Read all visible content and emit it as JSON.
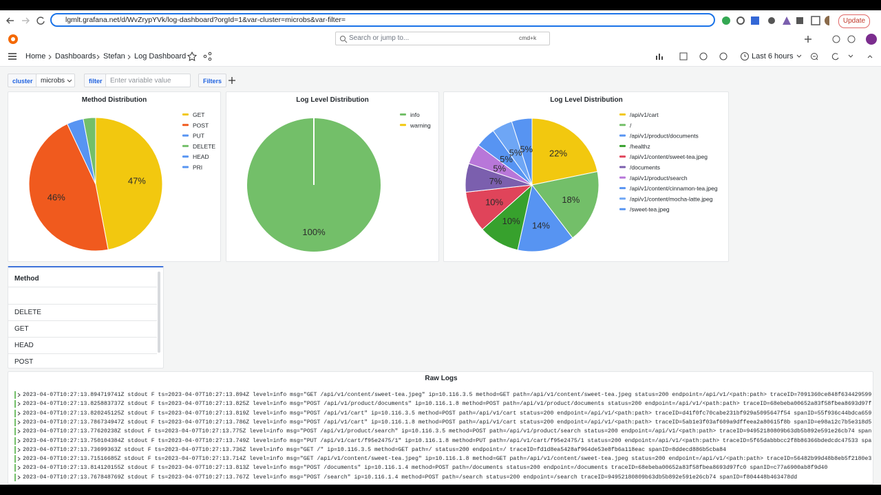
{
  "browser": {
    "url": "lgmlt.grafana.net/d/WvZrypYVk/log-dashboard?orgId=1&var-cluster=microbs&var-filter=",
    "update_button": "Update"
  },
  "topbar": {
    "search_placeholder": "Search or jump to...",
    "shortcut": "cmd+k",
    "breadcrumbs": [
      "Home",
      "Dashboards",
      "Stefan",
      "Log Dashboard"
    ],
    "time_range": "Last 6 hours"
  },
  "variables": {
    "cluster_label": "cluster",
    "cluster_value": "microbs",
    "filter_label": "filter",
    "filter_placeholder": "Enter variable value",
    "filters_button": "Filters"
  },
  "chart_data": [
    {
      "type": "pie",
      "title": "Method Distribution",
      "categories": [
        "GET",
        "POST",
        "PUT",
        "DELETE",
        "HEAD",
        "PRI"
      ],
      "values": [
        47,
        46,
        4,
        3,
        0,
        0
      ],
      "value_labels": [
        "47%",
        "46%",
        null,
        null,
        null,
        null
      ],
      "colors": [
        "#f2c80f",
        "#f05a1e",
        "#5794f2",
        "#73bf69",
        "#5794f2",
        "#5794f2"
      ]
    },
    {
      "type": "pie",
      "title": "Log Level Distribution",
      "categories": [
        "info",
        "warning"
      ],
      "values": [
        100,
        0
      ],
      "value_labels": [
        "100%",
        null
      ],
      "colors": [
        "#73bf69",
        "#f2c80f"
      ]
    },
    {
      "type": "pie",
      "title": "Log Level Distribution",
      "categories": [
        "/api/v1/cart",
        "/",
        "/api/v1/product/documents",
        "/healthz",
        "/api/v1/content/sweet-tea.jpeg",
        "/documents",
        "/api/v1/product/search",
        "/api/v1/content/cinnamon-tea.jpeg",
        "/api/v1/content/mocha-latte.jpeg",
        "/sweet-tea.jpeg"
      ],
      "values": [
        22,
        18,
        14,
        10,
        10,
        7,
        5,
        5,
        5,
        5
      ],
      "value_labels": [
        "22%",
        "18%",
        "14%",
        "10%",
        "10%",
        "7%",
        "5%",
        "5%",
        "5%",
        "5%"
      ],
      "colors": [
        "#f2c80f",
        "#73bf69",
        "#5794f2",
        "#37a12d",
        "#e0445a",
        "#7b5fae",
        "#b877d9",
        "#5794f2",
        "#6ea6f5",
        "#5794f2"
      ]
    }
  ],
  "table": {
    "header": "Method",
    "rows": [
      "DELETE",
      "GET",
      "HEAD",
      "POST"
    ]
  },
  "logs": {
    "title": "Raw Logs",
    "lines": [
      "2023-04-07T10:27:13.894719741Z stdout F ts=2023-04-07T10:27:13.894Z level=info msg=\"GET /api/v1/content/sweet-tea.jpeg\" ip=10.116.3.5 method=GET path=/api/v1/content/sweet-tea.jpeg status=200 endpoint=/api/v1/<path:path> traceID=7091360ce848f634429599",
      "2023-04-07T10:27:13.825883737Z stdout F ts=2023-04-07T10:27:13.825Z level=info msg=\"POST /api/v1/product/documents\" ip=10.116.1.8 method=POST path=/api/v1/product/documents status=200 endpoint=/api/v1/<path:path> traceID=68ebeba00652a83f58fbea8693d97f",
      "2023-04-07T10:27:13.820245125Z stdout F ts=2023-04-07T10:27:13.819Z level=info msg=\"POST /api/v1/cart\" ip=10.116.3.5 method=POST path=/api/v1/cart status=200 endpoint=/api/v1/<path:path> traceID=d41f0fc70cabe231bf929a5095647f54 spanID=55f936c44bdca659",
      "2023-04-07T10:27:13.786734947Z stdout F ts=2023-04-07T10:27:13.786Z level=info msg=\"POST /api/v1/cart\" ip=10.116.1.8 method=POST path=/api/v1/cart status=200 endpoint=/api/v1/<path:path> traceID=5ab1e3f03af609a9dffeea2a80615f8b spanID=e98a12c7b5e318d5",
      "2023-04-07T10:27:13.77620238Z stdout F ts=2023-04-07T10:27:13.775Z level=info msg=\"POST /api/v1/product/search\" ip=10.116.3.5 method=POST path=/api/v1/product/search status=200 endpoint=/api/v1/<path:path> traceID=94952180809b63db5b892e591e26cb74 span",
      "2023-04-07T10:27:13.750104384Z stdout F ts=2023-04-07T10:27:13.749Z level=info msg=\"PUT /api/v1/cart/f95e2475/1\" ip=10.116.1.8 method=PUT path=/api/v1/cart/f95e2475/1 status=200 endpoint=/api/v1/<path:path> traceID=5f65dabbbcc2f8b86366bdedcdc47533 spa",
      "2023-04-07T10:27:13.73699363Z stdout F ts=2023-04-07T10:27:13.736Z level=info msg=\"GET /\" ip=10.116.3.5 method=GET path=/ status=200 endpoint=/ traceID=fd1d8ea5428af964de53e8fb6a118eac spanID=8ddecd886b5cba84",
      "2023-04-07T10:27:13.71516685Z stdout F ts=2023-04-07T10:27:13.714Z level=info msg=\"GET /api/v1/content/sweet-tea.jpeg\" ip=10.116.1.8 method=GET path=/api/v1/content/sweet-tea.jpeg status=200 endpoint=/api/v1/<path:path> traceID=56482b99d48b8eb5f2180e3",
      "2023-04-07T10:27:13.814120155Z stdout F ts=2023-04-07T10:27:13.813Z level=info msg=\"POST /documents\" ip=10.116.1.4 method=POST path=/documents status=200 endpoint=/documents traceID=68ebeba00652a83f58fbea8693d97fc0 spanID=c77a6900ab8f9d40",
      "2023-04-07T10:27:13.767848769Z stdout F ts=2023-04-07T10:27:13.767Z level=info msg=\"POST /search\" ip=10.116.1.4 method=POST path=/search status=200 endpoint=/search traceID=94952180809b63db5b892e591e26cb74 spanID=f804448b463478dd"
    ]
  }
}
